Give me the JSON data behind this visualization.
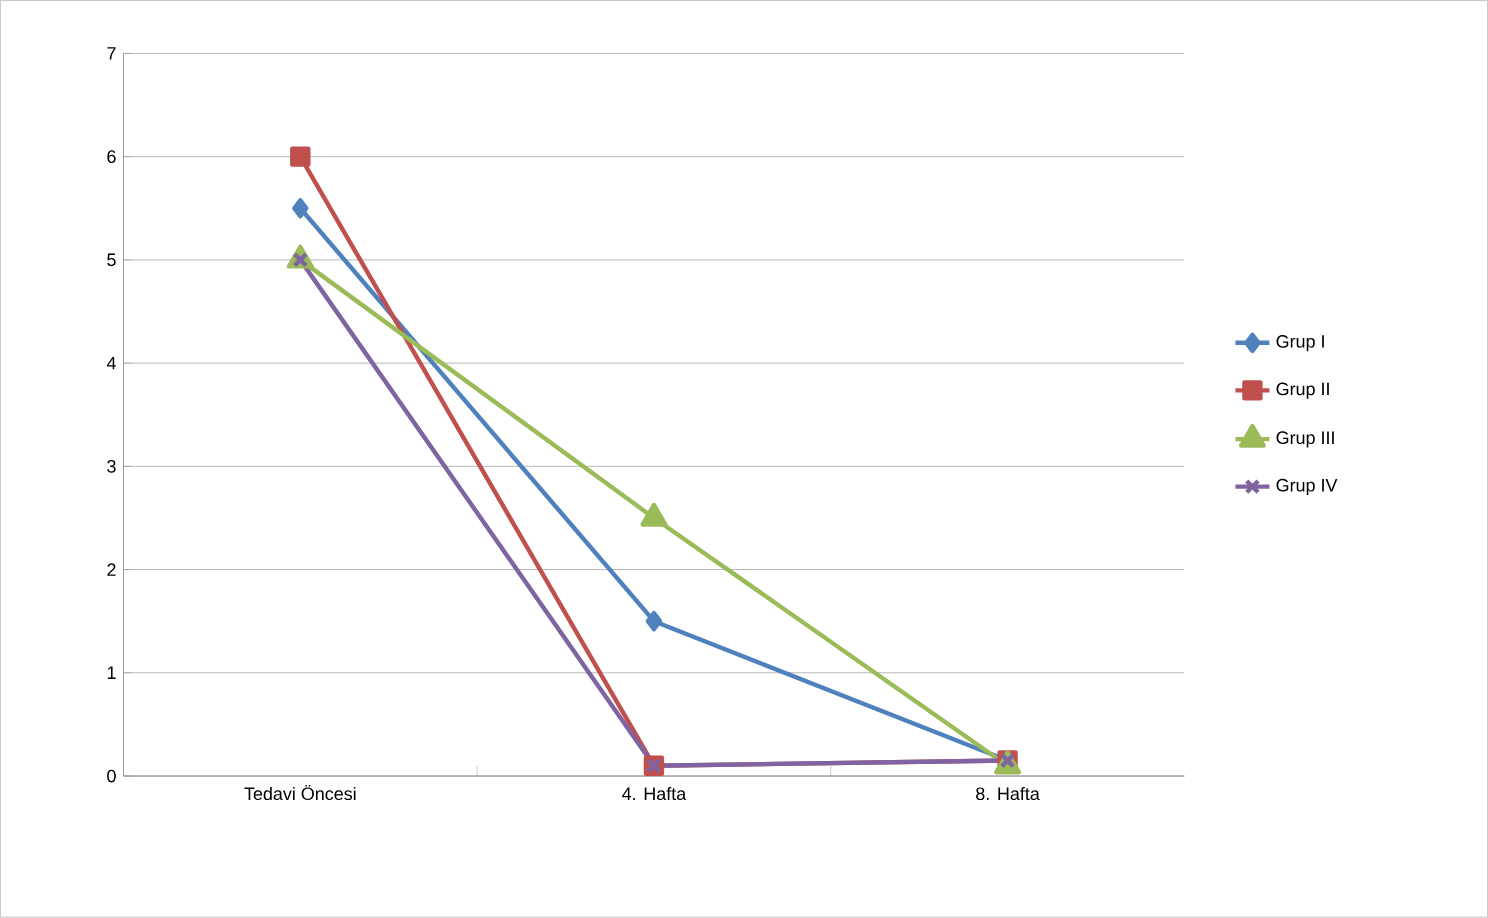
{
  "chart_data": {
    "type": "line",
    "categories": [
      "Tedavi Öncesi",
      "4. Hafta",
      "8. Hafta"
    ],
    "series": [
      {
        "name": "Grup I",
        "color": "#4f81bd",
        "marker": "diamond",
        "values": [
          5.5,
          1.5,
          0.15
        ]
      },
      {
        "name": "Grup II",
        "color": "#c0504d",
        "marker": "square",
        "values": [
          6,
          0.1,
          0.15
        ]
      },
      {
        "name": "Grup III",
        "color": "#9bbb59",
        "marker": "triangle",
        "values": [
          5,
          2.5,
          0.1
        ]
      },
      {
        "name": "Grup IV",
        "color": "#8064a2",
        "marker": "cross",
        "values": [
          5,
          0.1,
          0.15
        ]
      }
    ],
    "ylim": [
      0,
      7
    ],
    "yticks": [
      0,
      1,
      2,
      3,
      4,
      5,
      6,
      7
    ],
    "grid": "y",
    "legend": "right",
    "line_style": "solid"
  }
}
